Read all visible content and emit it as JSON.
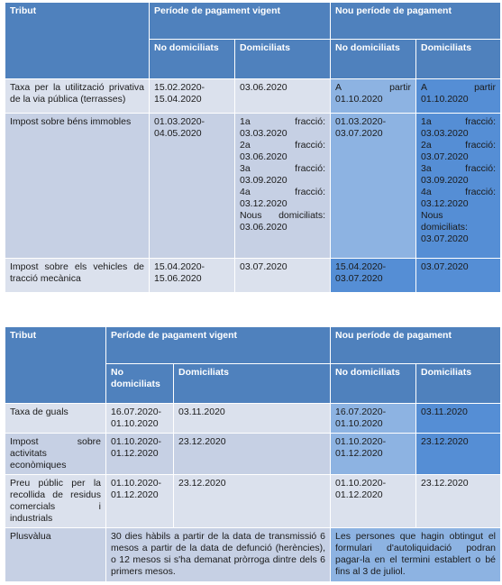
{
  "table1": {
    "headers": {
      "tribut": "Tribut",
      "vigent": "Període de pagament vigent",
      "nou": "Nou període de pagament",
      "no_dom": "No domiciliats",
      "dom": "Domiciliats",
      "no_dom_nou": "No domiciliats",
      "dom_nou": "Domiciliats"
    },
    "rows": [
      {
        "tribut": "Taxa per la utilització privativa de la via pública (terrasses)",
        "vigent_no_dom": [
          "15.02.2020-",
          "15.04.2020"
        ],
        "vigent_dom": [
          "03.06.2020"
        ],
        "nou_no_dom": [
          "A partir",
          "01.10.2020"
        ],
        "nou_dom": [
          "A partir",
          "01.10.2020"
        ]
      },
      {
        "tribut": "Impost sobre béns immobles",
        "vigent_no_dom": [
          "01.03.2020-",
          "04.05.2020"
        ],
        "vigent_dom": [
          "1a fracció:",
          "03.03.2020",
          "2a fracció:",
          "03.06.2020",
          "3a fracció:",
          "03.09.2020",
          "4a fracció:",
          "03.12.2020",
          "Nous domiciliats:",
          "03.06.2020"
        ],
        "nou_no_dom": [
          "01.03.2020-",
          "03.07.2020"
        ],
        "nou_dom": [
          "1a fracció:",
          "03.03.2020",
          "2a fracció:",
          "03.07.2020",
          "3a fracció:",
          "03.09.2020",
          "4a fracció:",
          "03.12.2020",
          "Nous",
          "domiciliats:",
          "03.07.2020"
        ]
      },
      {
        "tribut": "Impost sobre els vehicles de tracció mecànica",
        "vigent_no_dom": [
          "15.04.2020-",
          "15.06.2020"
        ],
        "vigent_dom": [
          "03.07.2020"
        ],
        "nou_no_dom": [
          "15.04.2020-",
          "03.07.2020"
        ],
        "nou_dom": [
          "03.07.2020"
        ]
      }
    ]
  },
  "table2": {
    "headers": {
      "tribut": "Tribut",
      "vigent": "Període de pagament vigent",
      "nou": "Nou període de pagament",
      "no_dom": "No domiciliats",
      "dom": "Domiciliats",
      "no_dom_nou": "No domiciliats",
      "dom_nou": "Domiciliats"
    },
    "rows": [
      {
        "tribut": "Taxa de guals",
        "vigent_no_dom": [
          "16.07.2020-",
          "01.10.2020"
        ],
        "vigent_dom": [
          "03.11.2020"
        ],
        "nou_no_dom": [
          "16.07.2020-",
          "01.10.2020"
        ],
        "nou_dom": [
          "03.11.2020"
        ]
      },
      {
        "tribut": "Impost sobre activitats econòmiques",
        "vigent_no_dom": [
          "01.10.2020-",
          "01.12.2020"
        ],
        "vigent_dom": [
          "23.12.2020"
        ],
        "nou_no_dom": [
          "01.10.2020-",
          "01.12.2020"
        ],
        "nou_dom": [
          "23.12.2020"
        ]
      },
      {
        "tribut": "Preu públic per la recollida de residus comercials i industrials",
        "vigent_no_dom": [
          "01.10.2020-",
          "01.12.2020"
        ],
        "vigent_dom": [
          "23.12.2020"
        ],
        "nou_no_dom": [
          "01.10.2020-",
          "01.12.2020"
        ],
        "nou_dom": [
          "23.12.2020"
        ]
      }
    ],
    "plusvalua": {
      "tribut": "Plusvàlua",
      "vigent": "30 dies hàbils a partir de la data de transmissió 6 mesos a partir de la data de defunció (herències), o 12 mesos si s'ha demanat pròrroga dintre dels 6 primers mesos.",
      "nou": "Les persones que hagin obtingut el formulari d'autoliquidació podran pagar-la en el termini establert o bé fins al 3 de juliol."
    }
  }
}
